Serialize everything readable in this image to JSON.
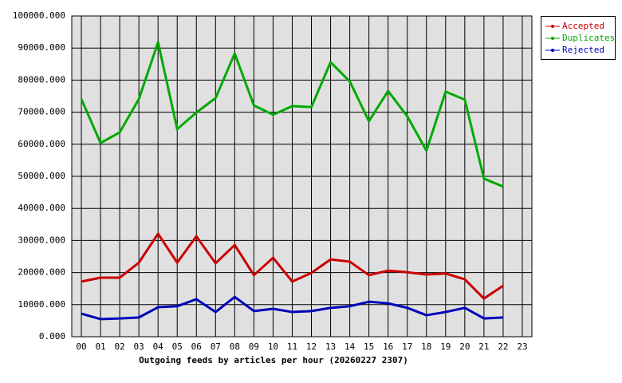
{
  "chart_data": {
    "type": "line",
    "x_label": "Outgoing feeds by articles per hour (20260227 2307)",
    "categories": [
      "00",
      "01",
      "02",
      "03",
      "04",
      "05",
      "06",
      "07",
      "08",
      "09",
      "10",
      "11",
      "12",
      "13",
      "14",
      "15",
      "16",
      "17",
      "18",
      "19",
      "20",
      "21",
      "22",
      "23"
    ],
    "series": [
      {
        "name": "Accepted",
        "color": "#cc0000",
        "values": [
          17200,
          18400,
          18400,
          23100,
          32100,
          23100,
          31300,
          22900,
          28600,
          19200,
          24600,
          17200,
          19900,
          24100,
          23400,
          19200,
          20600,
          20100,
          19400,
          19700,
          17900,
          11900,
          15900,
          null
        ]
      },
      {
        "name": "Duplicates",
        "color": "#00aa00",
        "values": [
          74100,
          60400,
          63700,
          74100,
          91800,
          64700,
          69900,
          74400,
          88300,
          72100,
          69200,
          71900,
          71600,
          85600,
          79600,
          67200,
          76600,
          68700,
          58000,
          76400,
          73900,
          49300,
          46800,
          null
        ]
      },
      {
        "name": "Rejected",
        "color": "#0000bb",
        "values": [
          7200,
          5500,
          5700,
          6000,
          9200,
          9500,
          11700,
          7700,
          12400,
          8000,
          8700,
          7700,
          8000,
          9000,
          9500,
          10900,
          10400,
          9000,
          6700,
          7700,
          9000,
          5700,
          6000,
          null
        ]
      }
    ],
    "ylim": [
      0,
      100000
    ],
    "yticks": [
      {
        "value": 0,
        "label": "0.000"
      },
      {
        "value": 10000,
        "label": "10000.000"
      },
      {
        "value": 20000,
        "label": "20000.000"
      },
      {
        "value": 30000,
        "label": "30000.000"
      },
      {
        "value": 40000,
        "label": "40000.000"
      },
      {
        "value": 50000,
        "label": "50000.000"
      },
      {
        "value": 60000,
        "label": "60000.000"
      },
      {
        "value": 70000,
        "label": "70000.000"
      },
      {
        "value": 80000,
        "label": "80000.000"
      },
      {
        "value": 90000,
        "label": "90000.000"
      },
      {
        "value": 100000,
        "label": "100000.000"
      }
    ],
    "grid": true,
    "legend": "right"
  }
}
